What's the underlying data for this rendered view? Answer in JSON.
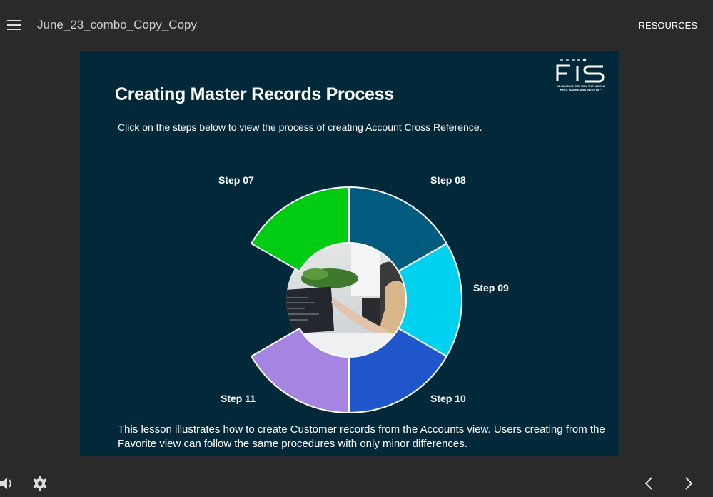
{
  "topbar": {
    "title": "June_23_combo_Copy_Copy",
    "resources": "RESOURCES",
    "menu_icon": "hamburger-icon"
  },
  "slide": {
    "logo_text": "FIS",
    "logo_tagline": "ADVANCING THE WAY THE WORLD PAYS, BANKS AND INVESTS",
    "title": "Creating Master Records Process",
    "subtitle": "Click on the steps below to view the process of creating Account Cross Reference.",
    "steps": [
      {
        "label": "Step  07",
        "color": "#00cc14"
      },
      {
        "label": "Step 08",
        "color": "#005b7f"
      },
      {
        "label": "Step 09",
        "color": "#00d1ef"
      },
      {
        "label": "Step 10",
        "color": "#1f56cc"
      },
      {
        "label": "Step 11",
        "color": "#a685e2"
      }
    ],
    "footer": "This lesson illustrates how to create Customer records from the Accounts view. Users creating from the Favorite view can follow the same procedures with only minor differences."
  },
  "bottombar": {
    "icons": [
      "speaker-icon",
      "gear-icon",
      "chevron-left-icon",
      "chevron-right-icon"
    ]
  }
}
